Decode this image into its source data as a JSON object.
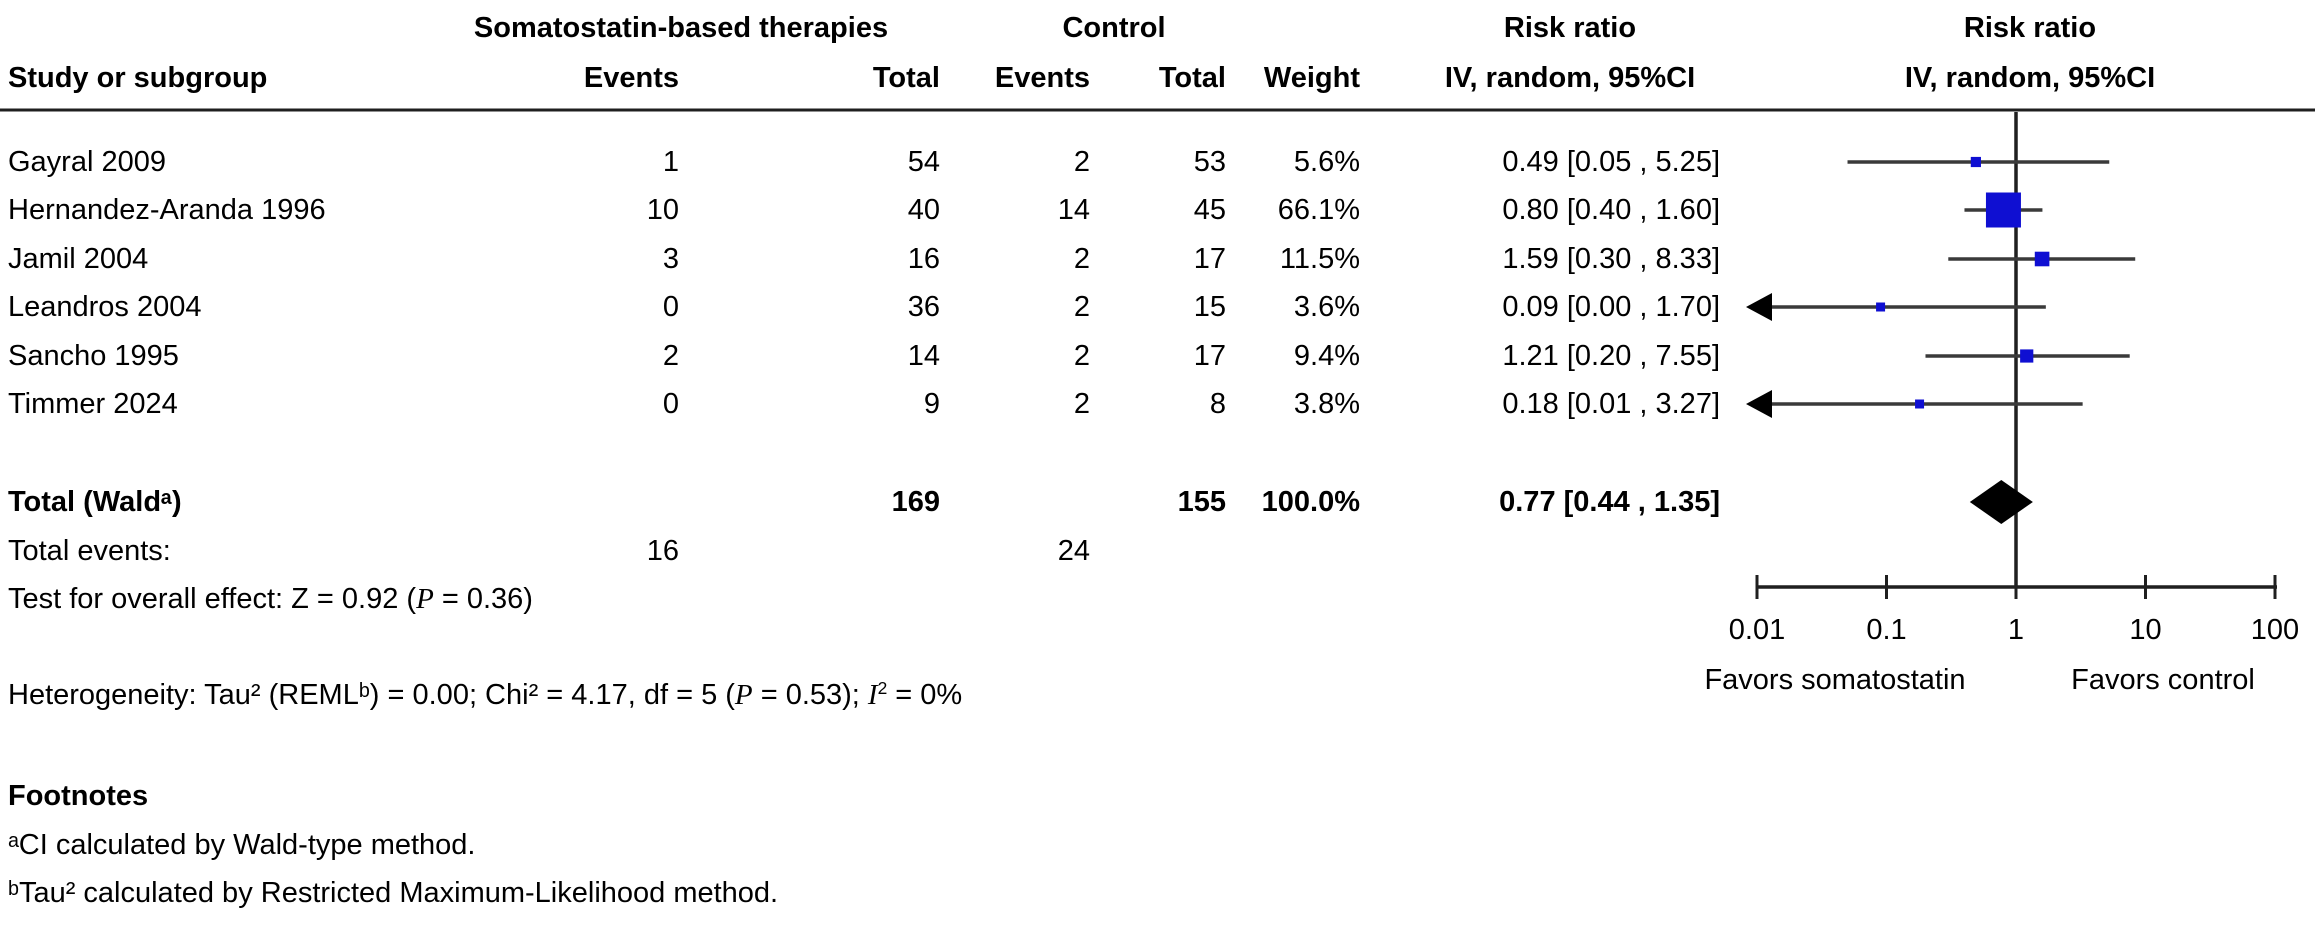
{
  "colors": {
    "background": "#ffffff",
    "square": "#0f0fd2",
    "diamond": "#000000",
    "ci_line": "#3a3a3a",
    "axis_line": "#1f1f1f",
    "text": "#000000"
  },
  "header": {
    "group_treatment": "Somatostatin-based therapies",
    "group_control": "Control",
    "risk_ratio_text_col": "Risk ratio",
    "risk_ratio_plot_col": "Risk ratio",
    "study": "Study or subgroup",
    "events_treatment": "Events",
    "total_treatment": "Total",
    "events_control": "Events",
    "total_control": "Total",
    "weight": "Weight",
    "method_text_col": "IV, random, 95%CI",
    "method_plot_col": "IV, random, 95%CI"
  },
  "chart_data": {
    "type": "forest",
    "effect_measure": "Risk ratio",
    "model": "IV, random, 95%CI",
    "x_axis": {
      "scale": "log",
      "ticks": [
        0.01,
        0.1,
        1,
        10,
        100
      ],
      "tick_labels": [
        "0.01",
        "0.1",
        "1",
        "10",
        "100"
      ],
      "left_label": "Favors somatostatin",
      "right_label": "Favors control",
      "no_effect_line": 1
    },
    "rows": [
      {
        "study": "Gayral 2009",
        "events_treatment": 1,
        "total_treatment": 54,
        "events_control": 2,
        "total_control": 53,
        "weight": "5.6%",
        "weight_pct": 5.6,
        "rr": 0.49,
        "ci_low": 0.05,
        "ci_high": 5.25,
        "ci_label": "0.49 [0.05 , 5.25]"
      },
      {
        "study": "Hernandez-Aranda 1996",
        "events_treatment": 10,
        "total_treatment": 40,
        "events_control": 14,
        "total_control": 45,
        "weight": "66.1%",
        "weight_pct": 66.1,
        "rr": 0.8,
        "ci_low": 0.4,
        "ci_high": 1.6,
        "ci_label": "0.80 [0.40 , 1.60]"
      },
      {
        "study": "Jamil 2004",
        "events_treatment": 3,
        "total_treatment": 16,
        "events_control": 2,
        "total_control": 17,
        "weight": "11.5%",
        "weight_pct": 11.5,
        "rr": 1.59,
        "ci_low": 0.3,
        "ci_high": 8.33,
        "ci_label": "1.59 [0.30 , 8.33]"
      },
      {
        "study": "Leandros 2004",
        "events_treatment": 0,
        "total_treatment": 36,
        "events_control": 2,
        "total_control": 15,
        "weight": "3.6%",
        "weight_pct": 3.6,
        "rr": 0.09,
        "ci_low": 0.0,
        "ci_high": 1.7,
        "ci_label": "0.09 [0.00 , 1.70]"
      },
      {
        "study": "Sancho 1995",
        "events_treatment": 2,
        "total_treatment": 14,
        "events_control": 2,
        "total_control": 17,
        "weight": "9.4%",
        "weight_pct": 9.4,
        "rr": 1.21,
        "ci_low": 0.2,
        "ci_high": 7.55,
        "ci_label": "1.21 [0.20 , 7.55]"
      },
      {
        "study": "Timmer 2024",
        "events_treatment": 0,
        "total_treatment": 9,
        "events_control": 2,
        "total_control": 8,
        "weight": "3.8%",
        "weight_pct": 3.8,
        "rr": 0.18,
        "ci_low": 0.01,
        "ci_high": 3.27,
        "ci_label": "0.18 [0.01 , 3.27]"
      }
    ],
    "total": {
      "label": "Total (Waldᵃ)",
      "total_treatment": 169,
      "total_control": 155,
      "weight": "100.0%",
      "rr": 0.77,
      "ci_low": 0.44,
      "ci_high": 1.35,
      "ci_label": "0.77 [0.44 , 1.35]"
    },
    "total_events": {
      "label": "Total events:",
      "treatment": 16,
      "control": 24
    },
    "overall_effect_segments": [
      {
        "t": "Test for overall effect: Z = 0.92 ("
      },
      {
        "t": "P",
        "i": 1
      },
      {
        "t": " = 0.36)"
      }
    ],
    "heterogeneity_segments": [
      {
        "t": "Heterogeneity: Tau² (REMLᵇ) = 0.00; Chi² = 4.17, df = 5 ("
      },
      {
        "t": "P",
        "i": 1
      },
      {
        "t": " = 0.53); "
      },
      {
        "t": "I",
        "i": 1
      },
      {
        "t": "2",
        "sup": 1
      },
      {
        "t": " = 0%"
      }
    ]
  },
  "footnotes": {
    "title": "Footnotes",
    "a": "ᵃCI calculated by Wald-type method.",
    "b": "ᵇTau² calculated by Restricted Maximum-Likelihood method."
  }
}
